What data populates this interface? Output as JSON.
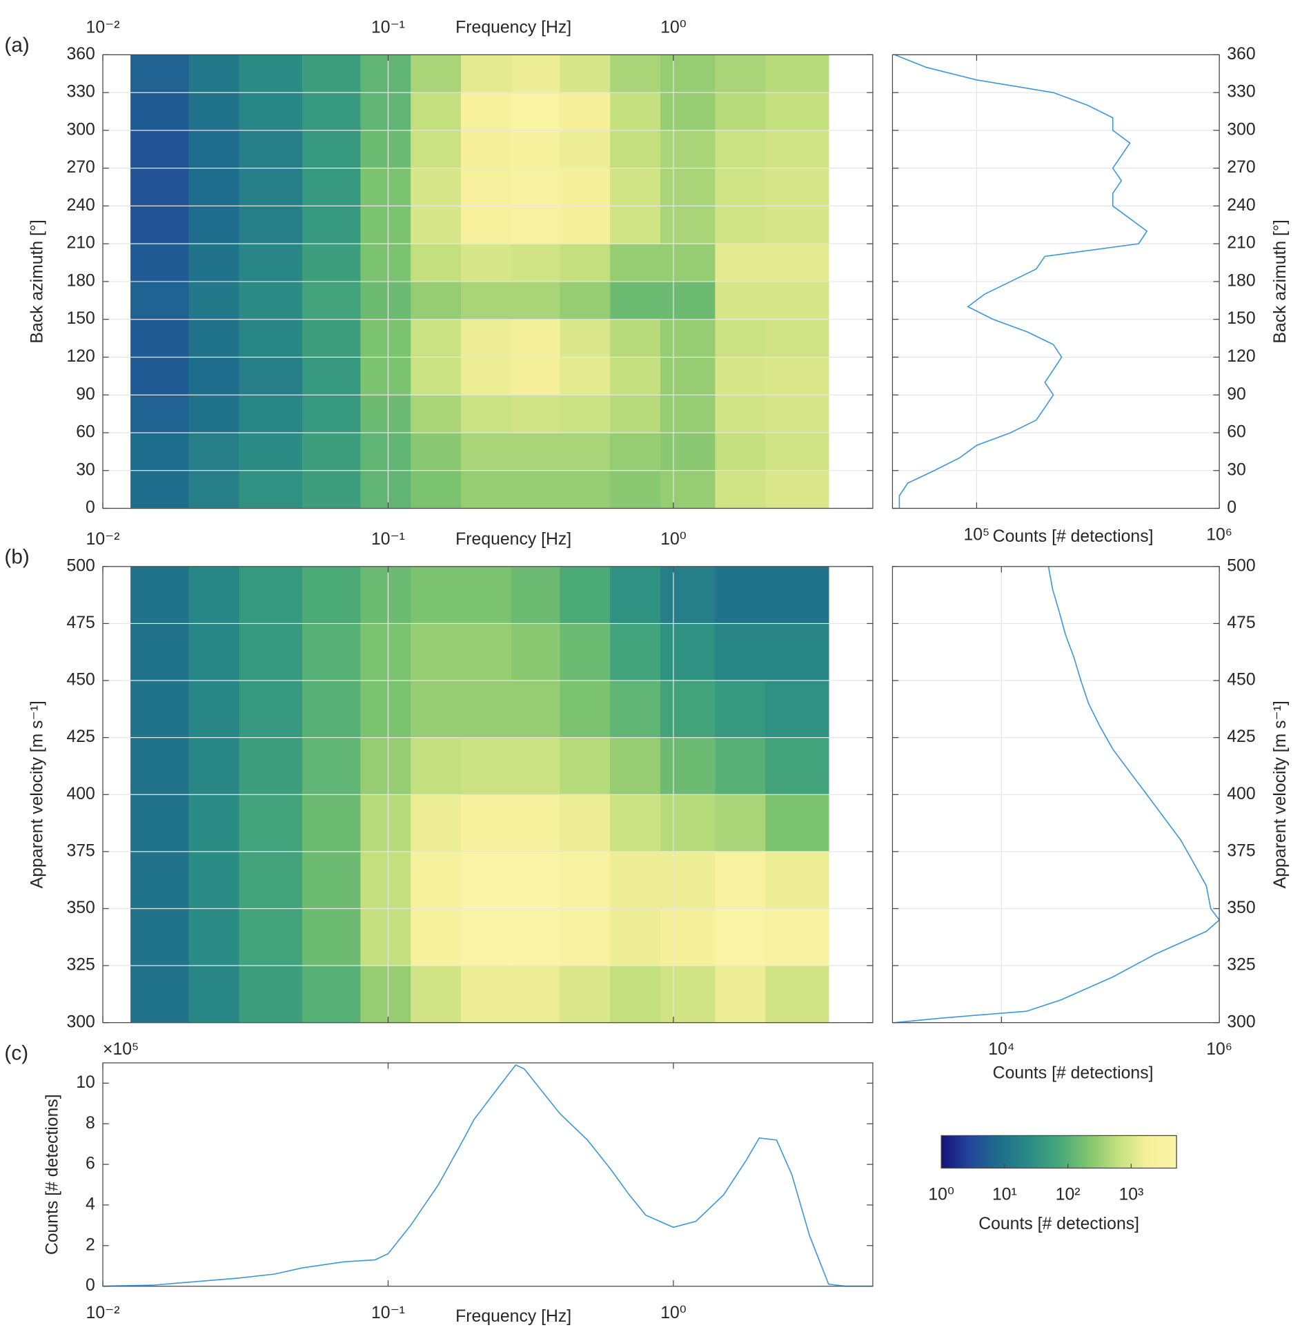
{
  "chart_data": [
    {
      "type": "heatmap",
      "panel_label": "(a)",
      "xlabel": "Frequency [Hz]",
      "ylabel": "Back azimuth [°]",
      "x_scale": "log",
      "xlim": [
        0.01,
        5
      ],
      "xticks": [
        {
          "value": 0.01,
          "label": "10⁻²"
        },
        {
          "value": 0.1,
          "label": "10⁻¹"
        },
        {
          "value": 1,
          "label": "10⁰"
        }
      ],
      "ylim": [
        0,
        360
      ],
      "yticks": [
        0,
        30,
        60,
        90,
        120,
        150,
        180,
        210,
        240,
        270,
        300,
        330,
        360
      ],
      "grid": true,
      "xbins": [
        0.0125,
        0.02,
        0.03,
        0.05,
        0.08,
        0.12,
        0.18,
        0.27,
        0.4,
        0.6,
        0.9,
        1.4,
        2.1,
        3.5
      ],
      "ybins": [
        0,
        30,
        60,
        90,
        120,
        150,
        180,
        210,
        240,
        270,
        300,
        330,
        360
      ],
      "values": [
        [
          8,
          15,
          30,
          50,
          120,
          200,
          300,
          300,
          300,
          250,
          300,
          800,
          1000
        ],
        [
          8,
          15,
          25,
          50,
          120,
          250,
          400,
          400,
          400,
          300,
          250,
          600,
          800
        ],
        [
          6,
          10,
          20,
          40,
          150,
          400,
          700,
          800,
          700,
          500,
          300,
          800,
          900
        ],
        [
          5,
          8,
          15,
          40,
          200,
          700,
          1500,
          2000,
          1200,
          600,
          300,
          900,
          1000
        ],
        [
          5,
          10,
          20,
          50,
          200,
          700,
          1500,
          1800,
          1000,
          500,
          300,
          700,
          800
        ],
        [
          6,
          12,
          25,
          60,
          150,
          300,
          400,
          400,
          300,
          150,
          150,
          900,
          900
        ],
        [
          5,
          10,
          20,
          50,
          200,
          600,
          900,
          800,
          600,
          300,
          300,
          1200,
          1200
        ],
        [
          4,
          8,
          15,
          40,
          200,
          900,
          2500,
          3000,
          2000,
          800,
          400,
          800,
          900
        ],
        [
          4,
          8,
          15,
          40,
          200,
          900,
          2500,
          3000,
          2000,
          800,
          400,
          800,
          900
        ],
        [
          4,
          8,
          15,
          40,
          150,
          700,
          2000,
          2500,
          1500,
          600,
          400,
          700,
          800
        ],
        [
          5,
          10,
          20,
          40,
          120,
          600,
          2500,
          3500,
          2000,
          600,
          300,
          500,
          600
        ],
        [
          6,
          12,
          25,
          50,
          120,
          400,
          1200,
          1500,
          900,
          400,
          300,
          400,
          500
        ]
      ]
    },
    {
      "type": "line",
      "xlabel": "Counts [# detections]",
      "ylabel": "Back azimuth [°]",
      "x_scale": "log",
      "xlim": [
        45000,
        1000000
      ],
      "xticks": [
        {
          "value": 100000,
          "label": "10⁵"
        },
        {
          "value": 1000000,
          "label": "10⁶"
        }
      ],
      "ylim": [
        0,
        360
      ],
      "yticks": [
        0,
        30,
        60,
        90,
        120,
        150,
        180,
        210,
        240,
        270,
        300,
        330,
        360
      ],
      "grid": true,
      "y": [
        0,
        10,
        20,
        30,
        40,
        50,
        60,
        70,
        80,
        90,
        100,
        110,
        120,
        130,
        140,
        150,
        160,
        170,
        180,
        190,
        200,
        210,
        220,
        230,
        240,
        250,
        260,
        270,
        280,
        290,
        300,
        310,
        320,
        330,
        340,
        350,
        360
      ],
      "series": [
        {
          "color": "#3d97d6",
          "values": [
            48000,
            48000,
            52000,
            67000,
            85000,
            100000,
            138000,
            176000,
            191000,
            207000,
            191000,
            207000,
            224000,
            207000,
            162000,
            117000,
            92000,
            108000,
            138000,
            176000,
            191000,
            465000,
            503000,
            428000,
            364000,
            364000,
            395000,
            364000,
            395000,
            428000,
            364000,
            364000,
            286000,
            207000,
            100000,
            62000,
            46000
          ]
        }
      ]
    },
    {
      "type": "heatmap",
      "panel_label": "(b)",
      "xlabel": "Frequency [Hz]",
      "ylabel": "Apparent velocity [m s⁻¹]",
      "x_scale": "log",
      "xlim": [
        0.01,
        5
      ],
      "xticks": [
        {
          "value": 0.01,
          "label": "10⁻²"
        },
        {
          "value": 0.1,
          "label": "10⁻¹"
        },
        {
          "value": 1,
          "label": "10⁰"
        }
      ],
      "ylim": [
        300,
        500
      ],
      "yticks": [
        300,
        325,
        350,
        375,
        400,
        425,
        450,
        475,
        500
      ],
      "grid": true,
      "xbins": [
        0.0125,
        0.02,
        0.03,
        0.05,
        0.08,
        0.12,
        0.18,
        0.27,
        0.4,
        0.6,
        0.9,
        1.4,
        2.1,
        3.5
      ],
      "ybins": [
        300,
        325,
        350,
        375,
        400,
        425,
        450,
        475,
        500
      ],
      "values": [
        [
          10,
          20,
          50,
          100,
          300,
          800,
          1500,
          1500,
          1000,
          600,
          800,
          1500,
          800
        ],
        [
          10,
          25,
          60,
          150,
          600,
          2500,
          5000,
          5000,
          3000,
          1500,
          2000,
          5000,
          3000
        ],
        [
          10,
          25,
          60,
          150,
          600,
          2500,
          5000,
          5000,
          3000,
          1500,
          1500,
          3000,
          1500
        ],
        [
          10,
          25,
          60,
          150,
          500,
          1500,
          2500,
          2500,
          1500,
          700,
          500,
          400,
          200
        ],
        [
          10,
          20,
          50,
          120,
          300,
          600,
          700,
          700,
          500,
          300,
          150,
          100,
          60
        ],
        [
          10,
          20,
          40,
          100,
          200,
          300,
          300,
          300,
          200,
          120,
          60,
          40,
          30
        ],
        [
          10,
          20,
          40,
          100,
          200,
          300,
          300,
          250,
          150,
          60,
          30,
          20,
          20
        ],
        [
          10,
          20,
          40,
          80,
          150,
          200,
          200,
          150,
          80,
          30,
          15,
          10,
          10
        ]
      ]
    },
    {
      "type": "line",
      "xlabel": "Counts [# detections]",
      "ylabel": "Apparent velocity [m s⁻¹]",
      "x_scale": "log",
      "xlim": [
        1000,
        1000000
      ],
      "xticks": [
        {
          "value": 10000,
          "label": "10⁴"
        },
        {
          "value": 1000000,
          "label": "10⁶"
        }
      ],
      "ylim": [
        300,
        500
      ],
      "yticks": [
        300,
        325,
        350,
        375,
        400,
        425,
        450,
        475,
        500
      ],
      "grid": true,
      "y": [
        300,
        302,
        305,
        310,
        320,
        330,
        340,
        345,
        350,
        360,
        370,
        380,
        390,
        400,
        410,
        420,
        430,
        440,
        450,
        460,
        470,
        480,
        490,
        500
      ],
      "series": [
        {
          "color": "#3d97d6",
          "values": [
            1050,
            2800,
            17000,
            35400,
            105000,
            258000,
            760000,
            1000000,
            835000,
            760000,
            582000,
            443000,
            309000,
            216000,
            150000,
            105000,
            80000,
            63000,
            53600,
            46400,
            38800,
            34000,
            29500,
            27000
          ]
        }
      ]
    },
    {
      "type": "line",
      "panel_label": "(c)",
      "xlabel": "Frequency [Hz]",
      "ylabel": "Counts [# detections]",
      "y_multiplier": "×10⁵",
      "x_scale": "log",
      "xlim": [
        0.01,
        5
      ],
      "xticks": [
        {
          "value": 0.01,
          "label": "10⁻²"
        },
        {
          "value": 0.1,
          "label": "10⁻¹"
        },
        {
          "value": 1,
          "label": "10⁰"
        }
      ],
      "ylim": [
        0,
        1100000
      ],
      "yticks": [
        0,
        {
          "value": 200000,
          "label": "2"
        },
        {
          "value": 400000,
          "label": "4"
        },
        {
          "value": 600000,
          "label": "6"
        },
        {
          "value": 800000,
          "label": "8"
        },
        {
          "value": 1000000,
          "label": "10"
        }
      ],
      "grid": false,
      "x": [
        0.01,
        0.015,
        0.02,
        0.03,
        0.04,
        0.05,
        0.07,
        0.09,
        0.1,
        0.12,
        0.15,
        0.18,
        0.2,
        0.25,
        0.28,
        0.3,
        0.4,
        0.5,
        0.6,
        0.7,
        0.8,
        1,
        1.2,
        1.5,
        1.8,
        2,
        2.3,
        2.6,
        3,
        3.5,
        4,
        5
      ],
      "series": [
        {
          "color": "#3d97d6",
          "values": [
            0,
            5000,
            20000,
            40000,
            60000,
            90000,
            120000,
            130000,
            160000,
            300000,
            500000,
            700000,
            820000,
            1000000,
            1090000,
            1070000,
            850000,
            720000,
            580000,
            450000,
            350000,
            290000,
            320000,
            450000,
            620000,
            730000,
            720000,
            550000,
            250000,
            10000,
            0,
            0
          ]
        }
      ]
    },
    {
      "type": "colorbar",
      "label": "Counts [# detections]",
      "x_scale": "log",
      "clim": [
        1,
        5200
      ],
      "ticks": [
        {
          "value": 1,
          "label": "10⁰"
        },
        {
          "value": 10,
          "label": "10¹"
        },
        {
          "value": 100,
          "label": "10²"
        },
        {
          "value": 1000,
          "label": "10³"
        }
      ],
      "colormap": [
        "#14127a",
        "#23479a",
        "#1f6f8c",
        "#2a8c84",
        "#46a77a",
        "#7fc46e",
        "#c4e07e",
        "#f5f09a",
        "#fbf4a6"
      ]
    }
  ]
}
